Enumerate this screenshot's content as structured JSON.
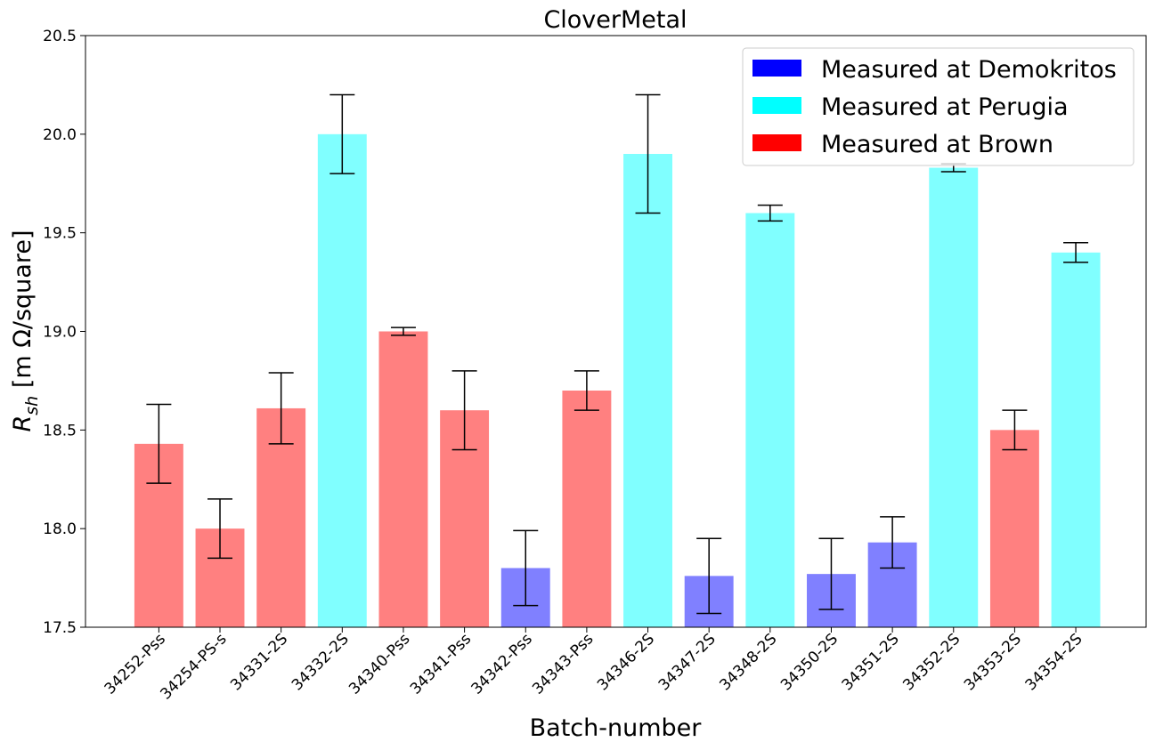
{
  "chart_data": {
    "type": "bar",
    "title": "CloverMetal",
    "xlabel": "Batch-number",
    "ylabel_main": "R",
    "ylabel_sub": "sh",
    "ylabel_unit": " [m Ω/square]",
    "ylim": [
      17.5,
      20.5
    ],
    "yticks": [
      17.5,
      18.0,
      18.5,
      19.0,
      19.5,
      20.0,
      20.5
    ],
    "ytick_labels": [
      "17.5",
      "18.0",
      "18.5",
      "19.0",
      "19.5",
      "20.0",
      "20.5"
    ],
    "grid": false,
    "legend_position": "top-right",
    "legend": [
      {
        "label": "Measured at Demokritos",
        "color": "#0000ff"
      },
      {
        "label": "Measured at Perugia",
        "color": "#00ffff"
      },
      {
        "label": "Measured at Brown",
        "color": "#ff0000"
      }
    ],
    "bar_colors": {
      "Demokritos": "#8080ff",
      "Perugia": "#80ffff",
      "Brown": "#ff8080"
    },
    "categories": [
      "34252-Pss",
      "34254-PS-s",
      "34331-2S",
      "34332-2S",
      "34340-Pss",
      "34341-Pss",
      "34342-Pss",
      "34343-Pss",
      "34346-2S",
      "34347-2S",
      "34348-2S",
      "34350-2S",
      "34351-2S",
      "34352-2S",
      "34353-2S",
      "34354-2S"
    ],
    "values": [
      18.43,
      18.0,
      18.61,
      20.0,
      19.0,
      18.6,
      17.8,
      18.7,
      19.9,
      17.76,
      19.6,
      17.77,
      17.93,
      19.83,
      18.5,
      19.4
    ],
    "errors": [
      0.2,
      0.15,
      0.18,
      0.2,
      0.02,
      0.2,
      0.19,
      0.1,
      0.3,
      0.19,
      0.04,
      0.18,
      0.13,
      0.02,
      0.1,
      0.05
    ],
    "labs": [
      "Brown",
      "Brown",
      "Brown",
      "Perugia",
      "Brown",
      "Brown",
      "Demokritos",
      "Brown",
      "Perugia",
      "Demokritos",
      "Perugia",
      "Demokritos",
      "Demokritos",
      "Perugia",
      "Brown",
      "Perugia"
    ]
  }
}
